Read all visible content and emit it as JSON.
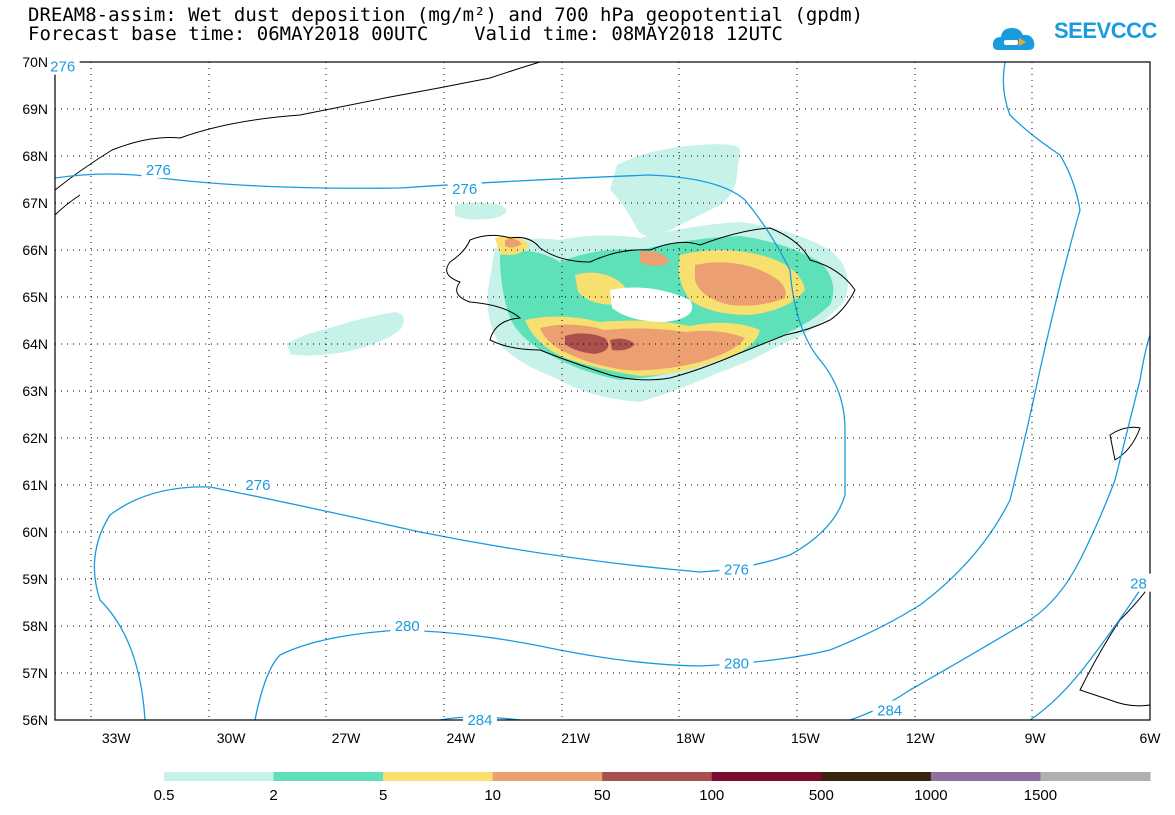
{
  "title": {
    "line1": "DREAM8-assim: Wet dust deposition (mg/m²) and 700 hPa geopotential (gpdm)",
    "line2": "Forecast base time: 06MAY2018 00UTC    Valid time: 08MAY2018 12UTC"
  },
  "logo": {
    "text": "SEEVCCC",
    "icon": "cloud-logo-icon"
  },
  "map": {
    "lat_labels": [
      "70N",
      "69N",
      "68N",
      "67N",
      "66N",
      "65N",
      "64N",
      "63N",
      "62N",
      "61N",
      "60N",
      "59N",
      "58N",
      "57N",
      "56N"
    ],
    "lon_labels": [
      "33W",
      "30W",
      "27W",
      "24W",
      "21W",
      "18W",
      "15W",
      "12W",
      "9W",
      "6W"
    ],
    "contour_labels": [
      {
        "text": "276",
        "lon": -34.4,
        "lat": 69.9
      },
      {
        "text": "276",
        "lon": -31.9,
        "lat": 67.7
      },
      {
        "text": "276",
        "lon": -23.9,
        "lat": 67.3
      },
      {
        "text": "276",
        "lon": -29.3,
        "lat": 61.0
      },
      {
        "text": "276",
        "lon": -16.8,
        "lat": 59.2
      },
      {
        "text": "280",
        "lon": -25.4,
        "lat": 58.0
      },
      {
        "text": "280",
        "lon": -16.8,
        "lat": 57.2
      },
      {
        "text": "284",
        "lon": -23.5,
        "lat": 56.0
      },
      {
        "text": "284",
        "lon": -12.8,
        "lat": 56.2
      },
      {
        "text": "28",
        "lon": -6.3,
        "lat": 58.9
      }
    ]
  },
  "legend": {
    "labels": [
      "0.5",
      "2",
      "5",
      "10",
      "50",
      "100",
      "500",
      "1000",
      "1500"
    ],
    "colors": [
      "#c6f2ea",
      "#5ee0b8",
      "#f7e070",
      "#ec9f70",
      "#a9504f",
      "#7a0c2e",
      "#3a2410",
      "#8e6f9e",
      "#b0b0b0"
    ]
  },
  "colors": {
    "contour": "#1a9be0",
    "coast": "#000000"
  }
}
